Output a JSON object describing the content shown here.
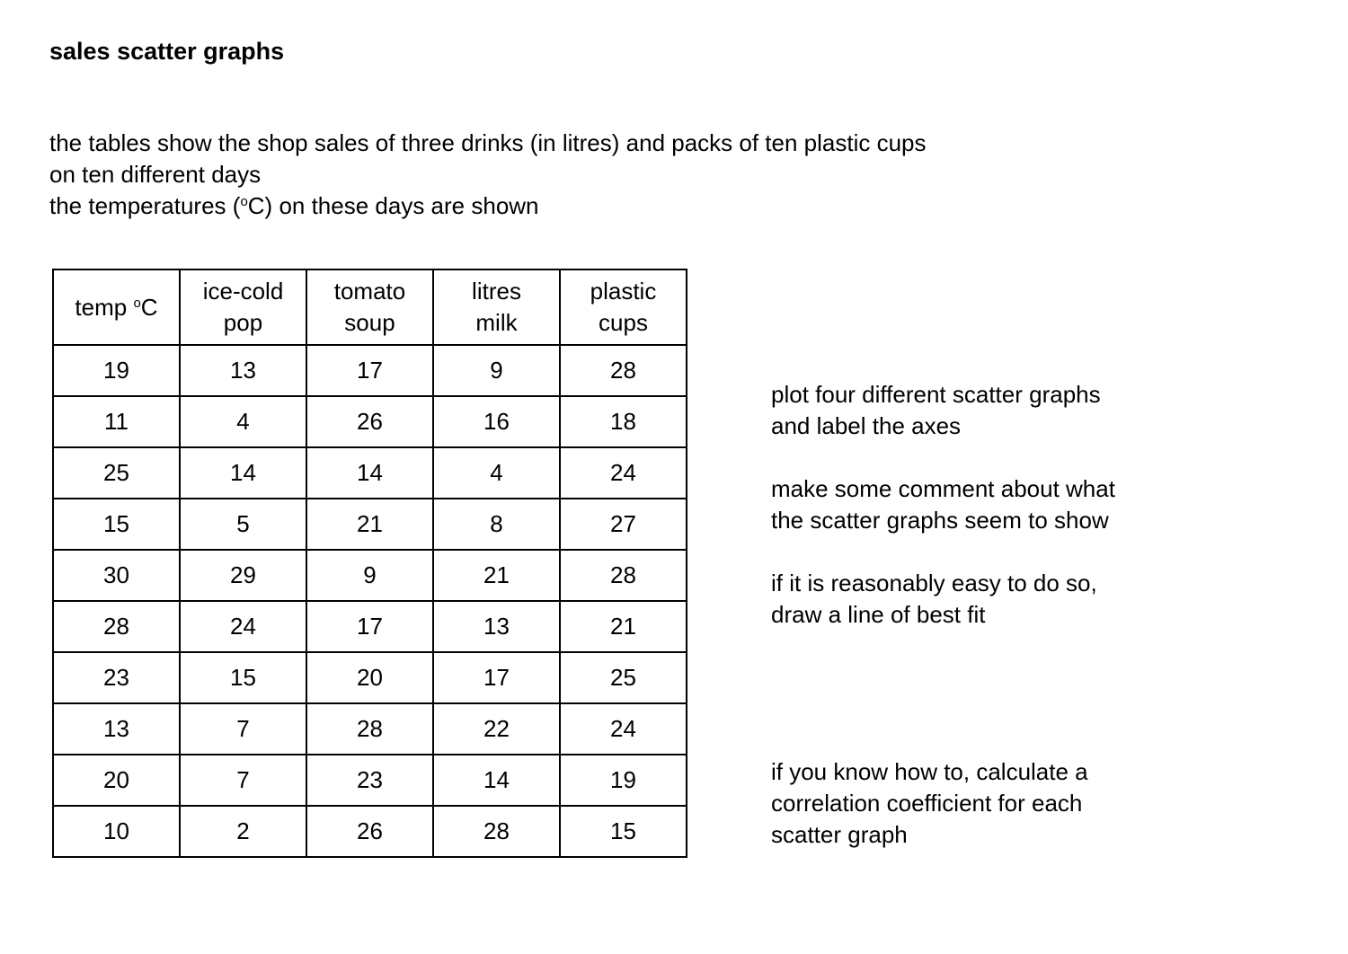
{
  "title": "sales scatter graphs",
  "intro": {
    "line1": "the tables show the shop sales of three drinks (in litres) and packs of ten plastic cups",
    "line2": "on ten different days",
    "line3_before": "the temperatures (",
    "line3_sup": "o",
    "line3_after": "C) on these days are shown"
  },
  "table": {
    "headers": [
      {
        "line1": "temp ",
        "sup": "o",
        "tail": "C",
        "line2": ""
      },
      {
        "line1": "ice-cold",
        "sup": "",
        "tail": "",
        "line2": "pop"
      },
      {
        "line1": "tomato",
        "sup": "",
        "tail": "",
        "line2": "soup"
      },
      {
        "line1": "litres",
        "sup": "",
        "tail": "",
        "line2": "milk"
      },
      {
        "line1": "plastic",
        "sup": "",
        "tail": "",
        "line2": "cups"
      }
    ],
    "rows": [
      [
        "19",
        "13",
        "17",
        "9",
        "28"
      ],
      [
        "11",
        "4",
        "26",
        "16",
        "18"
      ],
      [
        "25",
        "14",
        "14",
        "4",
        "24"
      ],
      [
        "15",
        "5",
        "21",
        "8",
        "27"
      ],
      [
        "30",
        "29",
        "9",
        "21",
        "28"
      ],
      [
        "28",
        "24",
        "17",
        "13",
        "21"
      ],
      [
        "23",
        "15",
        "20",
        "17",
        "25"
      ],
      [
        "13",
        "7",
        "28",
        "22",
        "24"
      ],
      [
        "20",
        "7",
        "23",
        "14",
        "19"
      ],
      [
        "10",
        "2",
        "26",
        "28",
        "15"
      ]
    ]
  },
  "instructions": {
    "plot": [
      "plot four different scatter graphs",
      "and label the axes"
    ],
    "comment": [
      "make some comment about what",
      "the scatter graphs seem to show"
    ],
    "bestfit": [
      "if it is reasonably easy to do so,",
      "draw a line of best fit"
    ],
    "correlation": [
      "if you know how to, calculate a",
      "correlation coefficient for each",
      "scatter graph"
    ]
  }
}
